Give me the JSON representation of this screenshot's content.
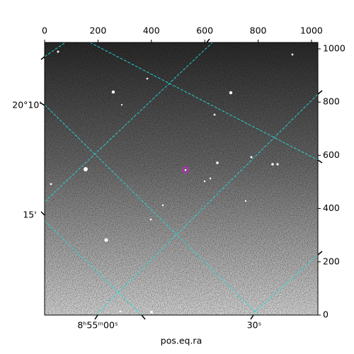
{
  "chart_data": {
    "type": "image",
    "xlim": [
      0,
      1024
    ],
    "xticks": [
      0,
      200,
      400,
      600,
      800,
      1000
    ],
    "ylim": [
      0,
      1024
    ],
    "yticks": [
      0,
      200,
      400,
      600,
      800,
      1000
    ],
    "wcs_y_labels": [
      "20°10'",
      "15'"
    ],
    "wcs_x_labels": [
      "8ʰ55ᵐ00ˢ",
      "30ˢ"
    ],
    "xlabel": "pos.eq.ra"
  }
}
